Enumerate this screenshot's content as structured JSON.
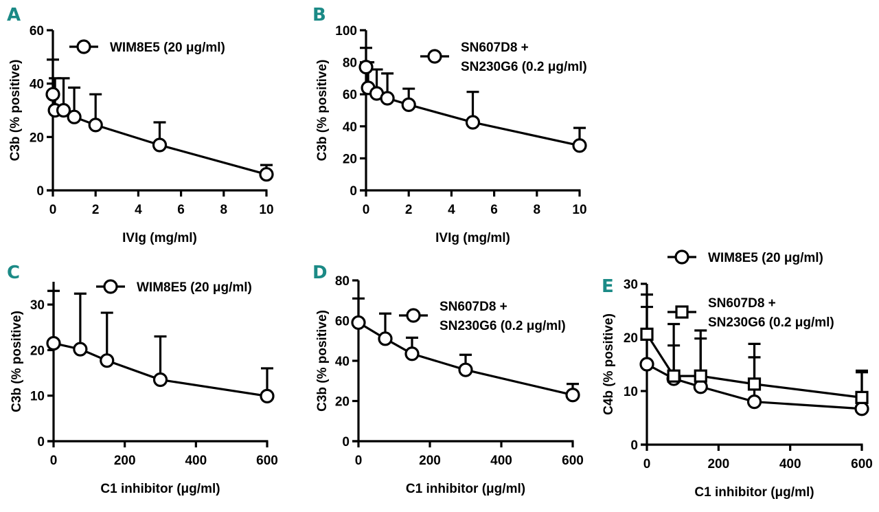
{
  "figure": {
    "panel_letter_color": "#1b8a86",
    "line_color": "#000000"
  },
  "chart_data": [
    {
      "id": "A",
      "panel_label": "A",
      "type": "line",
      "title": "",
      "xlabel": "IVIg (mg/ml)",
      "ylabel": "C3b (% positive)",
      "xlim": [
        0,
        10
      ],
      "ylim": [
        0,
        60
      ],
      "xticks": [
        0,
        2,
        4,
        6,
        8,
        10
      ],
      "yticks": [
        0,
        20,
        40,
        60
      ],
      "grid": false,
      "legend_position": "top-right",
      "series": [
        {
          "name": "WIM8E5 (20 μg/ml)",
          "legend_lines": [
            "WIM8E5 (20 μg/ml)"
          ],
          "marker": "circle",
          "x": [
            0,
            0.1,
            0.5,
            1,
            2,
            5,
            10
          ],
          "y": [
            36,
            30,
            30,
            27.5,
            24.5,
            17,
            6
          ],
          "error_upper": [
            49,
            42,
            42,
            38.5,
            36,
            25.5,
            9.5
          ]
        }
      ]
    },
    {
      "id": "B",
      "panel_label": "B",
      "type": "line",
      "title": "",
      "xlabel": "IVIg (mg/ml)",
      "ylabel": "C3b (% positive)",
      "xlim": [
        0,
        10
      ],
      "ylim": [
        0,
        100
      ],
      "xticks": [
        0,
        2,
        4,
        6,
        8,
        10
      ],
      "yticks": [
        0,
        20,
        40,
        60,
        80,
        100
      ],
      "grid": false,
      "legend_position": "top-right",
      "series": [
        {
          "name": "SN607D8 + SN230G6 (0.2 μg/ml)",
          "legend_lines": [
            "SN607D8 +",
            "SN230G6 (0.2 μg/ml)"
          ],
          "marker": "circle",
          "x": [
            0,
            0.1,
            0.5,
            1,
            2,
            5,
            10
          ],
          "y": [
            77,
            64,
            60.5,
            57.5,
            53.5,
            42.5,
            28
          ],
          "error_upper": [
            89,
            80,
            75.5,
            73,
            63.5,
            61.5,
            39
          ]
        }
      ]
    },
    {
      "id": "C",
      "panel_label": "C",
      "type": "line",
      "title": "",
      "xlabel": "C1 inhibitor (μg/ml)",
      "ylabel": "C3b (% positive)",
      "xlim": [
        0,
        600
      ],
      "ylim": [
        0,
        35
      ],
      "xticks": [
        0,
        200,
        400,
        600
      ],
      "yticks": [
        0,
        10,
        20,
        30
      ],
      "grid": false,
      "legend_position": "top-right",
      "series": [
        {
          "name": "WIM8E5 (20 μg/ml)",
          "legend_lines": [
            "WIM8E5 (20 μg/ml)"
          ],
          "marker": "circle",
          "x": [
            0,
            75,
            150,
            300,
            600
          ],
          "y": [
            21.5,
            20.2,
            17.7,
            13.5,
            9.9
          ],
          "error_upper": [
            33,
            32.4,
            28.2,
            23,
            16
          ]
        }
      ]
    },
    {
      "id": "D",
      "panel_label": "D",
      "type": "line",
      "title": "",
      "xlabel": "C1 inhibitor (μg/ml)",
      "ylabel": "C3b (% positive)",
      "xlim": [
        0,
        600
      ],
      "ylim": [
        0,
        80
      ],
      "xticks": [
        0,
        200,
        400,
        600
      ],
      "yticks": [
        0,
        20,
        40,
        60,
        80
      ],
      "grid": false,
      "legend_position": "top-right",
      "series": [
        {
          "name": "SN607D8 + SN230G6 (0.2 μg/ml)",
          "legend_lines": [
            "SN607D8 +",
            "SN230G6 (0.2 μg/ml)"
          ],
          "marker": "circle",
          "x": [
            0,
            75,
            150,
            300,
            600
          ],
          "y": [
            59,
            51,
            43.5,
            35.5,
            23
          ],
          "error_upper": [
            71,
            63.5,
            51.5,
            43,
            28.5
          ]
        }
      ]
    },
    {
      "id": "E",
      "panel_label": "E",
      "type": "line",
      "title": "",
      "xlabel": "C1 inhibitor (μg/ml)",
      "ylabel": "C4b (% positive)",
      "xlim": [
        0,
        600
      ],
      "ylim": [
        0,
        30
      ],
      "xticks": [
        0,
        200,
        400,
        600
      ],
      "yticks": [
        0,
        10,
        20,
        30
      ],
      "grid": false,
      "legend_position": "top",
      "series": [
        {
          "name": "WIM8E5 (20 μg/ml)",
          "legend_lines": [
            "WIM8E5 (20 μg/ml)"
          ],
          "marker": "circle",
          "x": [
            0,
            75,
            150,
            300,
            600
          ],
          "y": [
            15,
            12.3,
            10.8,
            8,
            6.7
          ],
          "error_upper": [
            25.7,
            18.5,
            19.8,
            16.3,
            13.5
          ]
        },
        {
          "name": "SN607D8 + SN230G6 (0.2 μg/ml)",
          "legend_lines": [
            "SN607D8 +",
            "SN230G6 (0.2 μg/ml)"
          ],
          "marker": "square",
          "x": [
            0,
            75,
            150,
            300,
            600
          ],
          "y": [
            20.6,
            12.8,
            12.8,
            11.3,
            8.8
          ],
          "error_upper": [
            28,
            22.5,
            21.3,
            18.8,
            13.8
          ]
        }
      ]
    }
  ]
}
